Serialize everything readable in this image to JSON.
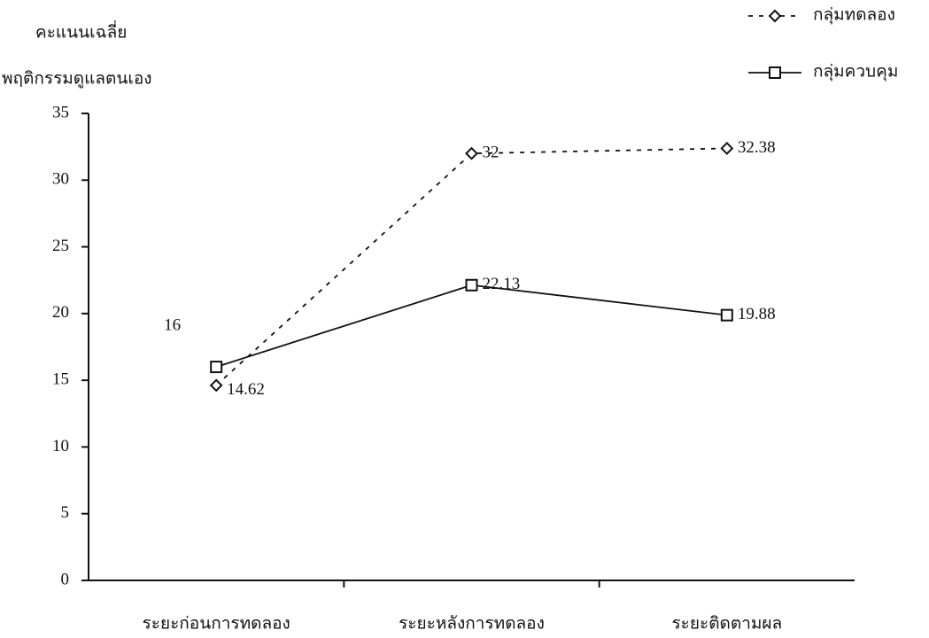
{
  "chart_data": {
    "type": "line",
    "y_title_lines": [
      "คะแนนเฉลี่ย",
      "พฤติกรรมดูแลตนเอง"
    ],
    "categories": [
      "ระยะก่อนการทดลอง",
      "ระยะหลังการทดลอง",
      "ระยะติดตามผล"
    ],
    "series": [
      {
        "name": "กลุ่มทดลอง",
        "color": "#111111",
        "dash": true,
        "marker": "diamond",
        "values": [
          14.62,
          32,
          32.38
        ]
      },
      {
        "name": "กลุ่มควบคุม",
        "color": "#111111",
        "dash": false,
        "marker": "square",
        "values": [
          16,
          22.13,
          19.88
        ]
      }
    ],
    "ylim": [
      0,
      35
    ],
    "yticks": [
      0,
      5,
      10,
      15,
      20,
      25,
      30,
      35
    ],
    "grid": false,
    "legend": "top-right"
  }
}
